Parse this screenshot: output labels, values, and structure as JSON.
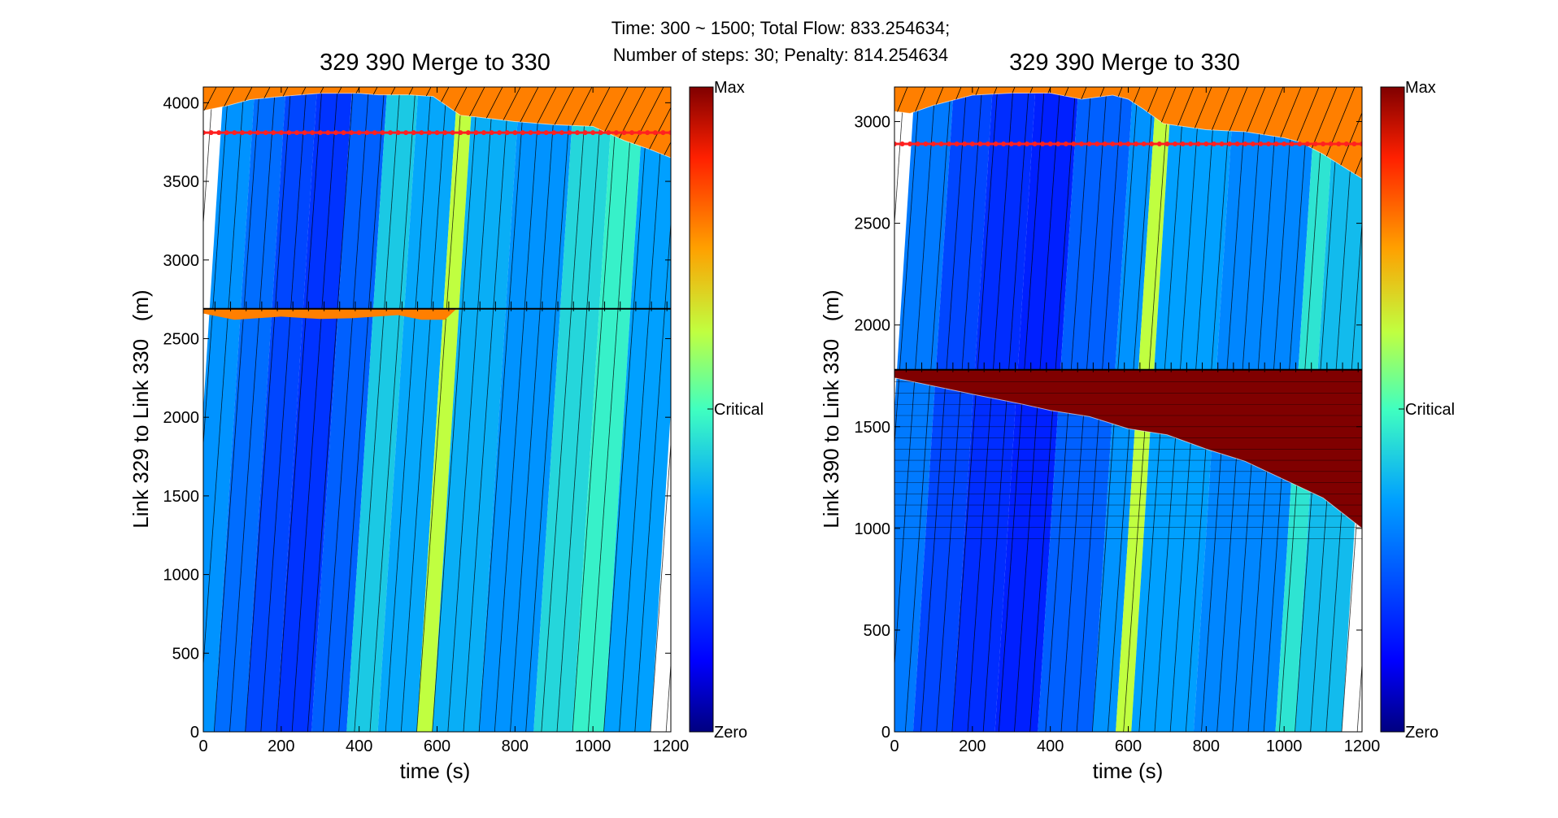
{
  "figure": {
    "suptitle_line1": "Time: 300 ~ 1500; Total Flow: 833.254634;",
    "suptitle_line2": "Number of steps: 30; Penalty: 814.254634"
  },
  "colorbar_labels": {
    "max": "Max",
    "critical": "Critical",
    "zero": "Zero"
  },
  "colors": {
    "free_flow": "#2060e0",
    "critical": "#7ef07a",
    "congested": "#ff7f00",
    "jammed": "#800000",
    "boundary_marker": "#ff2020"
  },
  "chart_data": [
    {
      "type": "heatmap",
      "title": "329 390 Merge to 330",
      "xlabel": "time (s)",
      "ylabel": "Link 329 to Link 330   (m)",
      "xlim": [
        0,
        1200
      ],
      "ylim": [
        0,
        4100
      ],
      "xticks": [
        0,
        200,
        400,
        600,
        800,
        1000,
        1200
      ],
      "yticks": [
        0,
        500,
        1000,
        1500,
        2000,
        2500,
        3000,
        3500,
        4000
      ],
      "colorbar": [
        "Zero",
        "Critical",
        "Max"
      ],
      "link_boundary_m": 2690,
      "marker_line_m": 3810,
      "upper_congestion_front": [
        [
          0,
          3950
        ],
        [
          60,
          3980
        ],
        [
          120,
          4020
        ],
        [
          200,
          4040
        ],
        [
          300,
          4060
        ],
        [
          400,
          4060
        ],
        [
          450,
          4050
        ],
        [
          530,
          4050
        ],
        [
          590,
          4040
        ],
        [
          660,
          3920
        ],
        [
          700,
          3910
        ],
        [
          800,
          3880
        ],
        [
          900,
          3860
        ],
        [
          1000,
          3850
        ],
        [
          1080,
          3760
        ],
        [
          1150,
          3700
        ],
        [
          1200,
          3650
        ]
      ],
      "lower_congestion_front": [
        [
          0,
          2660
        ],
        [
          80,
          2620
        ],
        [
          200,
          2640
        ],
        [
          300,
          2625
        ],
        [
          380,
          2630
        ],
        [
          500,
          2650
        ],
        [
          560,
          2620
        ],
        [
          620,
          2620
        ],
        [
          650,
          2690
        ]
      ],
      "density_bands": [
        {
          "t0": 0,
          "t1": 80,
          "d": 0.34
        },
        {
          "t0": 80,
          "t1": 160,
          "d": 0.28
        },
        {
          "t0": 160,
          "t1": 240,
          "d": 0.22
        },
        {
          "t0": 240,
          "t1": 330,
          "d": 0.19
        },
        {
          "t0": 330,
          "t1": 420,
          "d": 0.26
        },
        {
          "t0": 420,
          "t1": 500,
          "d": 0.42
        },
        {
          "t0": 500,
          "t1": 600,
          "d": 0.37
        },
        {
          "t0": 600,
          "t1": 640,
          "d": 0.62
        },
        {
          "t0": 640,
          "t1": 760,
          "d": 0.38
        },
        {
          "t0": 760,
          "t1": 900,
          "d": 0.34
        },
        {
          "t0": 900,
          "t1": 1000,
          "d": 0.44
        },
        {
          "t0": 1000,
          "t1": 1080,
          "d": 0.48
        },
        {
          "t0": 1080,
          "t1": 1200,
          "d": 0.36
        }
      ]
    },
    {
      "type": "heatmap",
      "title": "329 390 Merge to 330",
      "xlabel": "time (s)",
      "ylabel": "Link 390 to Link 330   (m)",
      "xlim": [
        0,
        1200
      ],
      "ylim": [
        0,
        3170
      ],
      "xticks": [
        0,
        200,
        400,
        600,
        800,
        1000,
        1200
      ],
      "yticks": [
        0,
        500,
        1000,
        1500,
        2000,
        2500,
        3000
      ],
      "colorbar": [
        "Zero",
        "Critical",
        "Max"
      ],
      "link_boundary_m": 1780,
      "marker_line_m": 2890,
      "upper_congestion_front": [
        [
          0,
          3050
        ],
        [
          40,
          3040
        ],
        [
          100,
          3080
        ],
        [
          200,
          3130
        ],
        [
          300,
          3140
        ],
        [
          400,
          3140
        ],
        [
          480,
          3110
        ],
        [
          560,
          3130
        ],
        [
          600,
          3110
        ],
        [
          640,
          3060
        ],
        [
          690,
          2990
        ],
        [
          800,
          2960
        ],
        [
          900,
          2950
        ],
        [
          1000,
          2920
        ],
        [
          1040,
          2900
        ],
        [
          1100,
          2840
        ],
        [
          1200,
          2720
        ]
      ],
      "lower_congestion_front": [
        [
          0,
          1740
        ],
        [
          100,
          1700
        ],
        [
          200,
          1660
        ],
        [
          330,
          1610
        ],
        [
          400,
          1580
        ],
        [
          500,
          1550
        ],
        [
          600,
          1490
        ],
        [
          700,
          1460
        ],
        [
          800,
          1390
        ],
        [
          900,
          1330
        ],
        [
          1000,
          1240
        ],
        [
          1100,
          1150
        ],
        [
          1200,
          1000
        ]
      ],
      "density_bands": [
        {
          "t0": 0,
          "t1": 100,
          "d": 0.3
        },
        {
          "t0": 100,
          "t1": 200,
          "d": 0.22
        },
        {
          "t0": 200,
          "t1": 310,
          "d": 0.18
        },
        {
          "t0": 310,
          "t1": 420,
          "d": 0.16
        },
        {
          "t0": 420,
          "t1": 560,
          "d": 0.26
        },
        {
          "t0": 560,
          "t1": 620,
          "d": 0.34
        },
        {
          "t0": 620,
          "t1": 660,
          "d": 0.62
        },
        {
          "t0": 660,
          "t1": 820,
          "d": 0.36
        },
        {
          "t0": 820,
          "t1": 1030,
          "d": 0.32
        },
        {
          "t0": 1030,
          "t1": 1080,
          "d": 0.46
        },
        {
          "t0": 1080,
          "t1": 1200,
          "d": 0.4
        }
      ]
    }
  ]
}
